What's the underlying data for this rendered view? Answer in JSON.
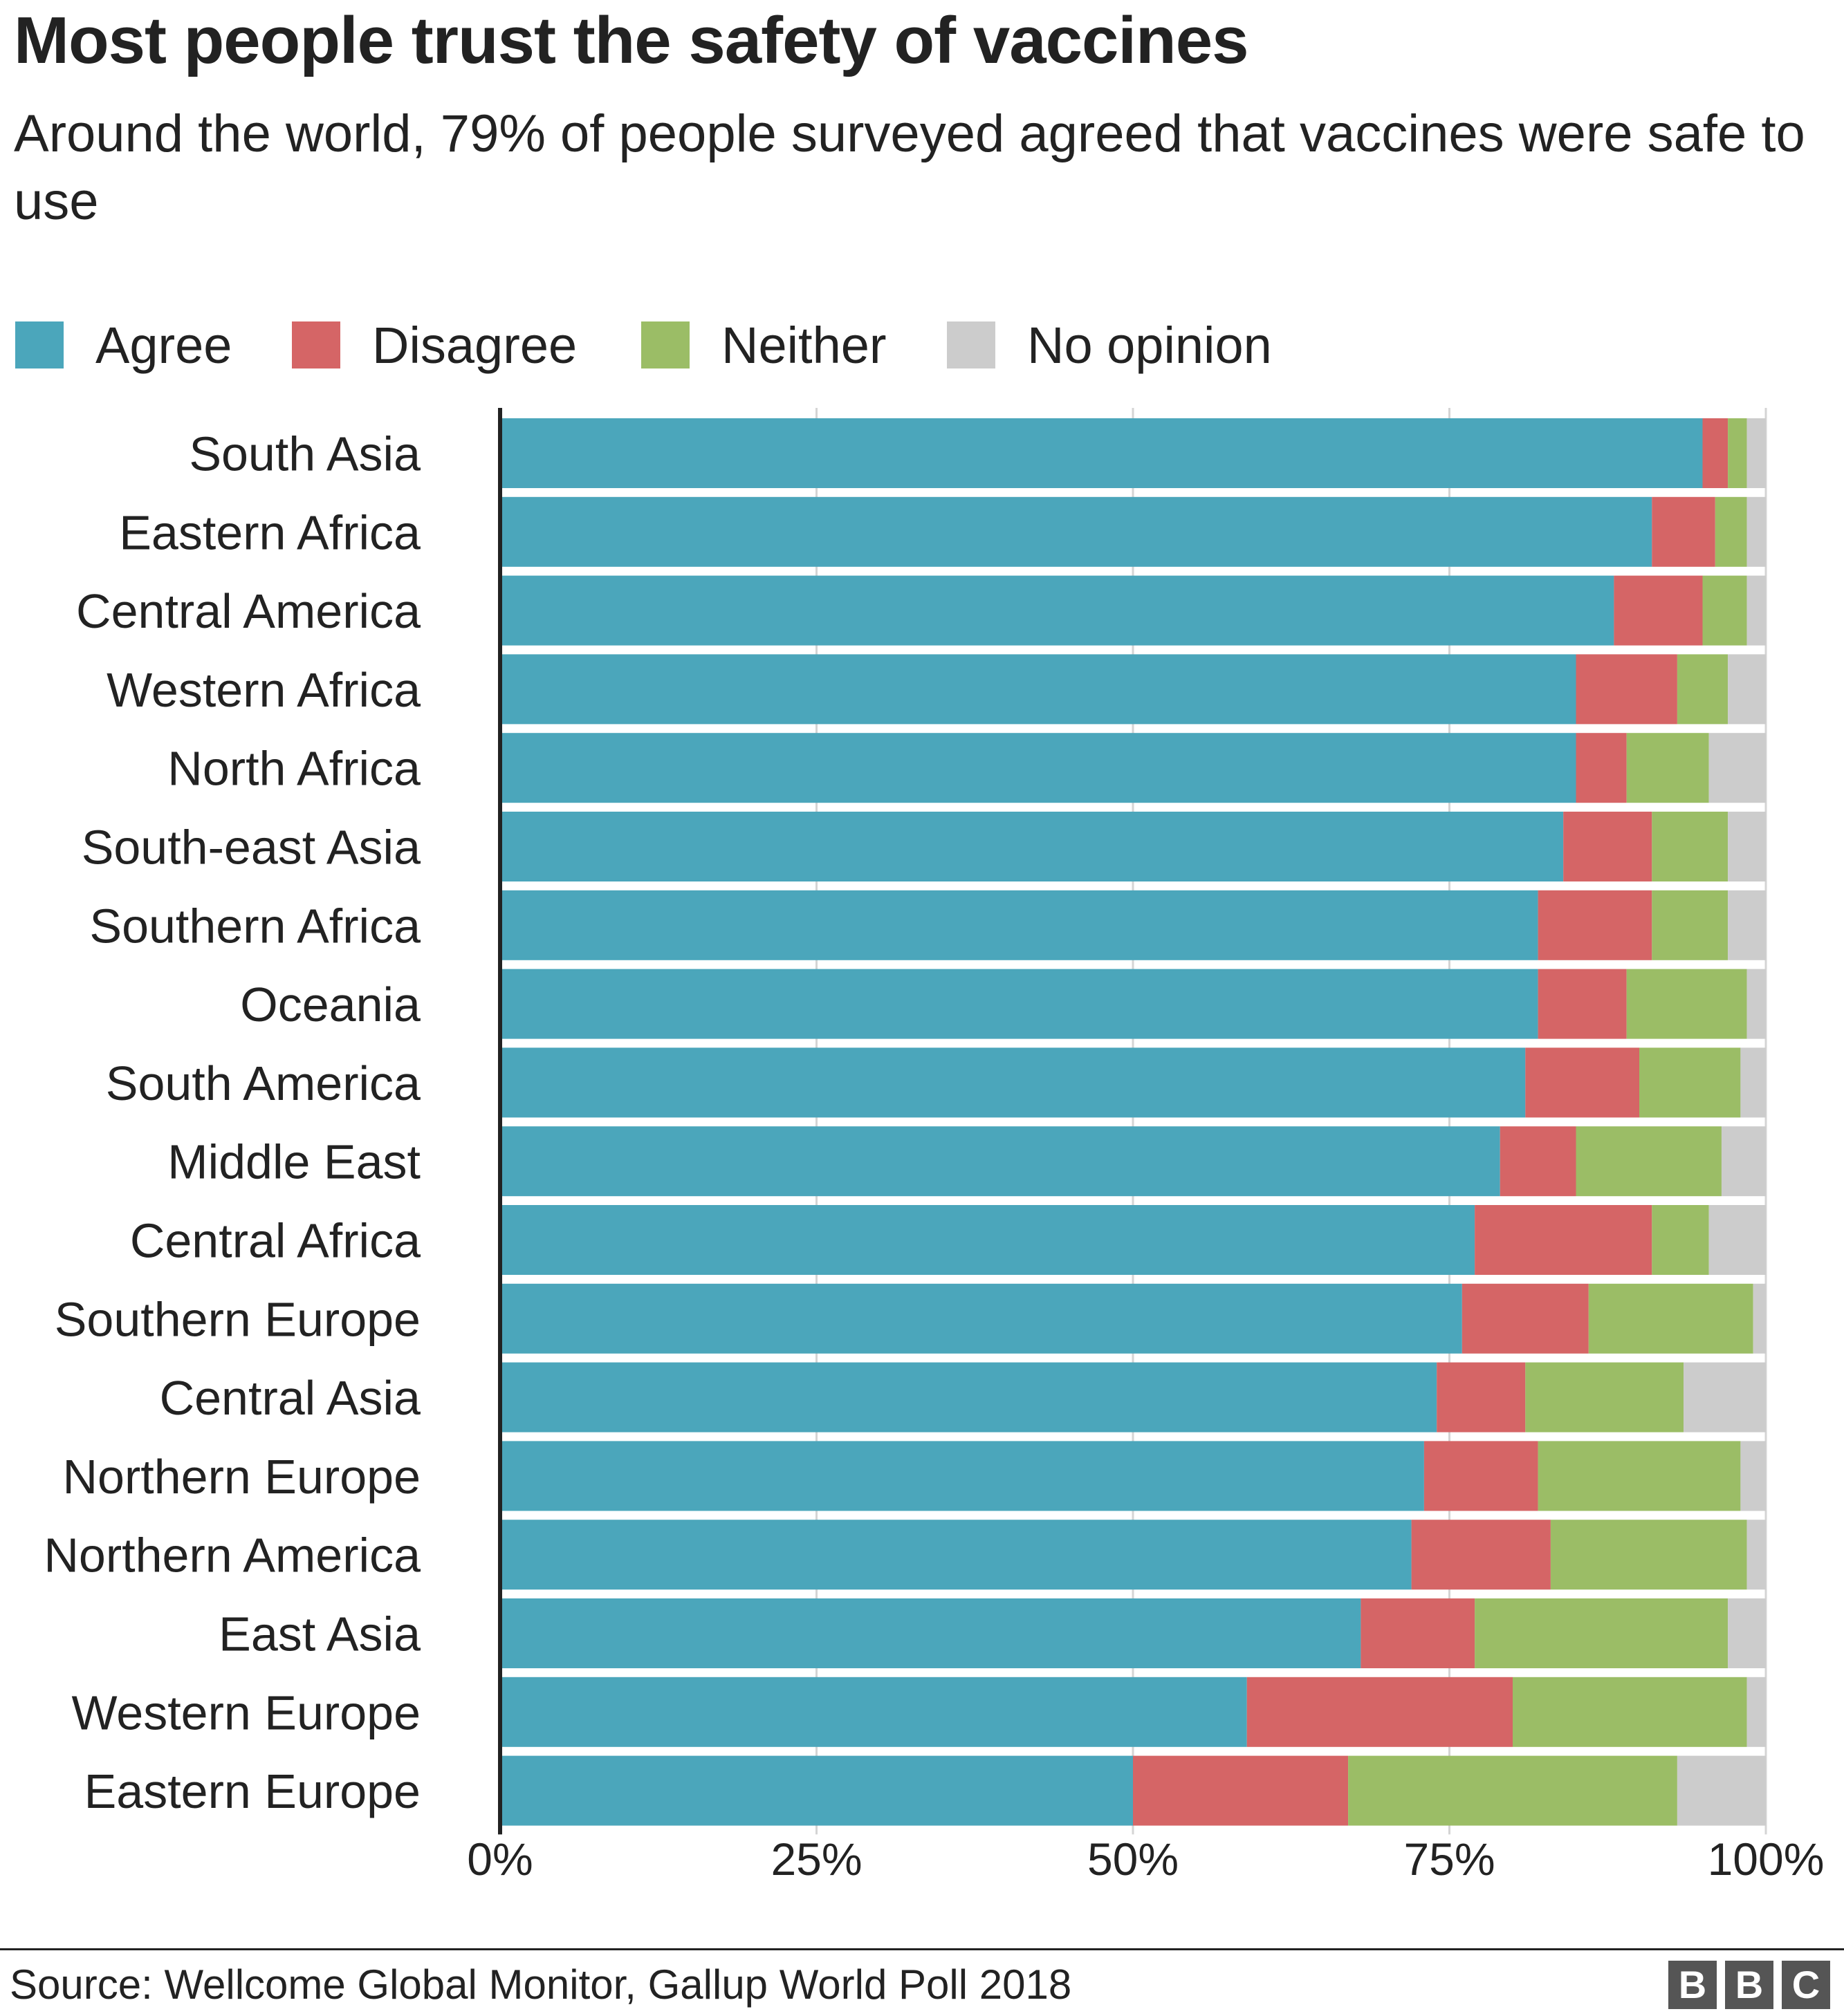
{
  "chart_data": {
    "type": "bar",
    "orientation": "horizontal",
    "stacked": true,
    "title": "Most people trust the safety of vaccines",
    "subtitle": "Around the world, 79% of people surveyed agreed that vaccines were safe to use",
    "xlabel": "",
    "ylabel": "",
    "xlim": [
      0,
      100
    ],
    "x_ticks": [
      "0%",
      "25%",
      "50%",
      "75%",
      "100%"
    ],
    "x_tick_values": [
      0,
      25,
      50,
      75,
      100
    ],
    "legend_position": "top-left",
    "grid": true,
    "categories": [
      "South Asia",
      "Eastern Africa",
      "Central America",
      "Western Africa",
      "North Africa",
      "South-east Asia",
      "Southern Africa",
      "Oceania",
      "South America",
      "Middle East",
      "Central Africa",
      "Southern Europe",
      "Central Asia",
      "Northern Europe",
      "Northern America",
      "East Asia",
      "Western Europe",
      "Eastern Europe"
    ],
    "series": [
      {
        "name": "Agree",
        "color": "#4ba6bb",
        "values": [
          95,
          91,
          88,
          85,
          85,
          84,
          82,
          82,
          81,
          79,
          77,
          76,
          74,
          73,
          72,
          68,
          59,
          50
        ]
      },
      {
        "name": "Disagree",
        "color": "#d56566",
        "values": [
          2,
          5,
          7,
          8,
          4,
          7,
          9,
          7,
          9,
          6,
          14,
          10,
          7,
          9,
          11,
          9,
          21,
          17
        ]
      },
      {
        "name": "Neither",
        "color": "#9bbd66",
        "values": [
          1.5,
          2.5,
          3.5,
          4,
          6.5,
          6,
          6,
          9.5,
          8,
          11.5,
          4.5,
          13,
          12.5,
          16,
          15.5,
          20,
          18.5,
          26
        ]
      },
      {
        "name": "No opinion",
        "color": "#cccccc",
        "values": [
          1.5,
          1.5,
          1.5,
          3,
          4.5,
          3,
          3,
          1.5,
          2,
          3.5,
          4.5,
          1,
          6.5,
          2,
          1.5,
          3,
          1.5,
          7
        ]
      }
    ]
  },
  "source": "Source: Wellcome Global Monitor, Gallup World Poll 2018",
  "logo": {
    "letters": [
      "B",
      "B",
      "C"
    ]
  }
}
